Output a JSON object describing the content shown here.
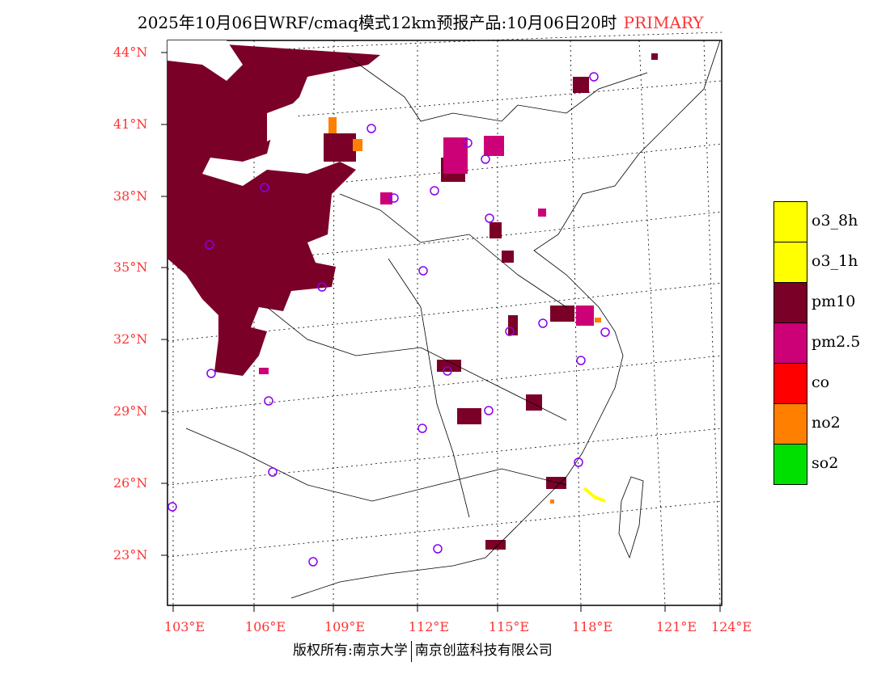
{
  "title": {
    "main": "2025年10月06日WRF/cmaq模式12km预报产品:10月06日20时",
    "tag": "PRIMARY"
  },
  "lat_ticks": [
    "44°N",
    "41°N",
    "38°N",
    "35°N",
    "32°N",
    "29°N",
    "26°N",
    "23°N"
  ],
  "lon_ticks": [
    "103°E",
    "106°E",
    "109°E",
    "112°E",
    "115°E",
    "118°E",
    "121°E",
    "124°E"
  ],
  "legend": [
    {
      "label": "o3_8h",
      "color": "#ffff00"
    },
    {
      "label": "o3_1h",
      "color": "#ffff00"
    },
    {
      "label": "pm10",
      "color": "#7a0028"
    },
    {
      "label": "pm2.5",
      "color": "#cc0077"
    },
    {
      "label": "co",
      "color": "#ff0000"
    },
    {
      "label": "no2",
      "color": "#ff8000"
    },
    {
      "label": "so2",
      "color": "#00e000"
    }
  ],
  "footer": {
    "left": "版权所有:南京大学",
    "right": "南京创蓝科技有限公司"
  },
  "colors": {
    "station": "#8800ee",
    "axis_label": "#ff3333"
  }
}
